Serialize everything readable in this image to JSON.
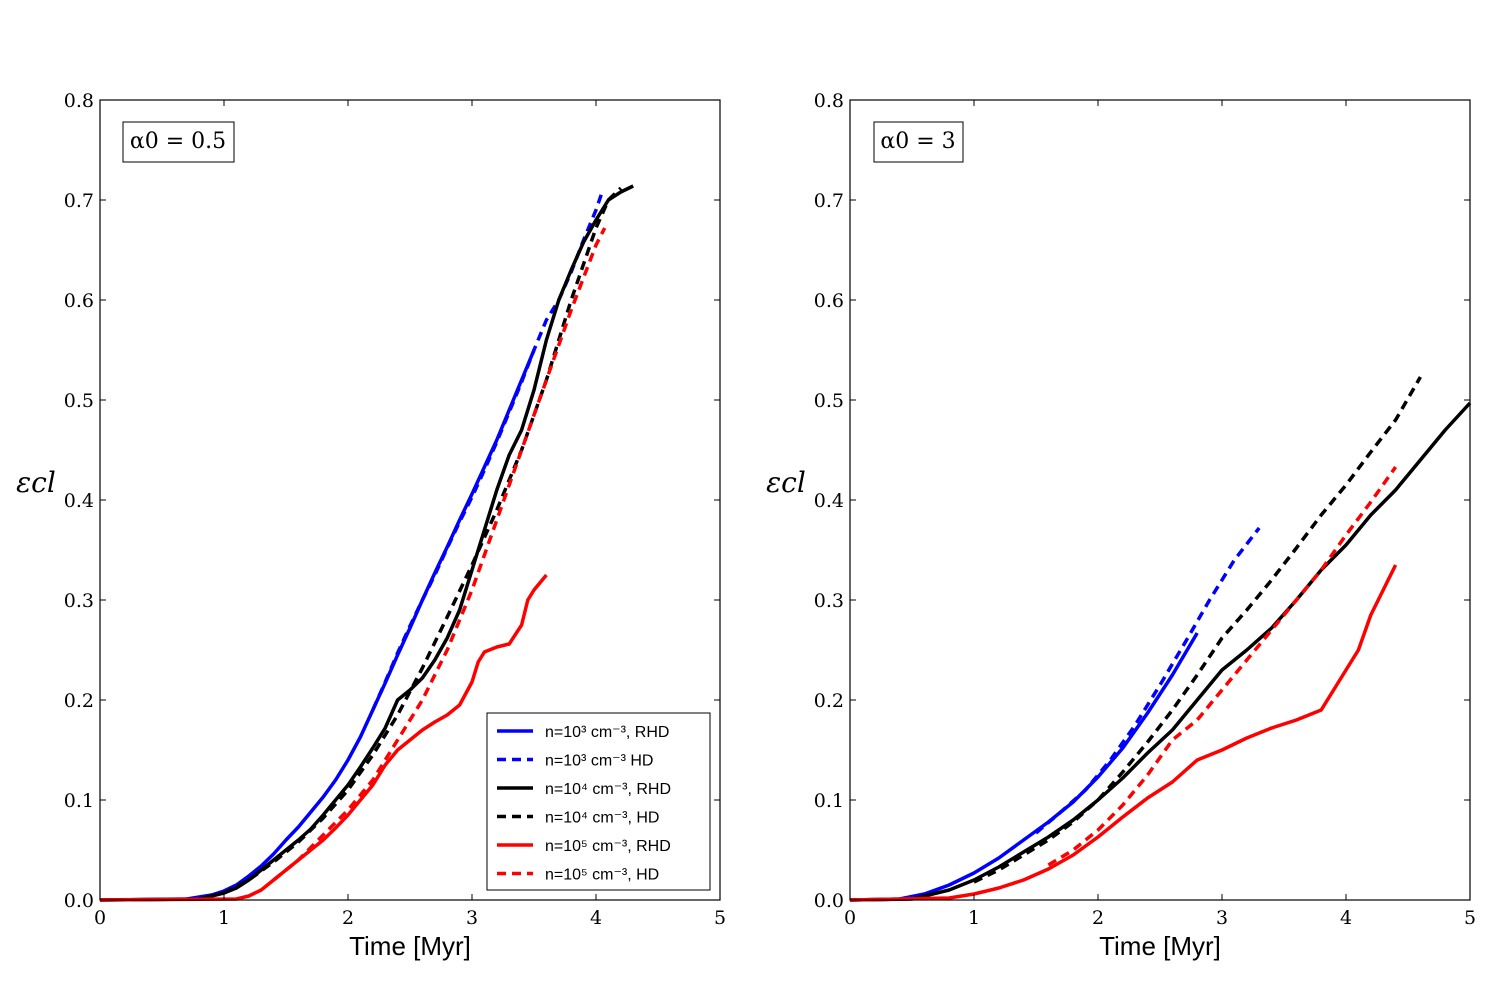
{
  "chart_data": [
    {
      "type": "line",
      "annotation": "α0 = 0.5",
      "xlabel": "Time [Myr]",
      "ylabel": "εcl",
      "xlim": [
        0,
        5
      ],
      "ylim": [
        0,
        0.8
      ],
      "xticks": [
        "0",
        "1",
        "2",
        "3",
        "4",
        "5"
      ],
      "yticks": [
        "0.0",
        "0.1",
        "0.2",
        "0.3",
        "0.4",
        "0.5",
        "0.6",
        "0.7",
        "0.8"
      ],
      "legend": {
        "placement": "bottom-right"
      },
      "series": [
        {
          "name": "n=10³ cm⁻³, RHD",
          "color": "#0000ff",
          "dash": false,
          "x": [
            0,
            0.7,
            0.9,
            1.0,
            1.1,
            1.2,
            1.3,
            1.4,
            1.5,
            1.6,
            1.7,
            1.8,
            1.9,
            2.0,
            2.1,
            2.2,
            2.3,
            2.4,
            2.5,
            2.6,
            2.7,
            2.8,
            2.9,
            3.0,
            3.1,
            3.2,
            3.3,
            3.4,
            3.5
          ],
          "y": [
            0.0,
            0.001,
            0.005,
            0.009,
            0.015,
            0.024,
            0.034,
            0.046,
            0.06,
            0.073,
            0.088,
            0.103,
            0.12,
            0.14,
            0.163,
            0.19,
            0.217,
            0.245,
            0.272,
            0.3,
            0.327,
            0.353,
            0.38,
            0.406,
            0.433,
            0.46,
            0.49,
            0.52,
            0.55
          ]
        },
        {
          "name": "n=10³ cm⁻³ HD",
          "color": "#0000ff",
          "dash": true,
          "x": [
            2.2,
            2.3,
            2.4,
            2.5,
            2.6,
            2.7,
            2.8,
            2.9,
            3.0,
            3.1,
            3.2,
            3.3,
            3.4,
            3.5,
            3.6,
            3.7,
            3.8,
            3.9,
            4.0,
            4.05
          ],
          "y": [
            0.19,
            0.218,
            0.247,
            0.274,
            0.3,
            0.325,
            0.352,
            0.378,
            0.403,
            0.43,
            0.458,
            0.488,
            0.518,
            0.55,
            0.58,
            0.6,
            0.628,
            0.66,
            0.69,
            0.708
          ]
        },
        {
          "name": "n=10⁴ cm⁻³, RHD",
          "color": "#000000",
          "dash": false,
          "x": [
            0,
            0.8,
            1.0,
            1.1,
            1.2,
            1.3,
            1.4,
            1.5,
            1.6,
            1.7,
            1.8,
            1.9,
            2.0,
            2.1,
            2.2,
            2.3,
            2.4,
            2.5,
            2.6,
            2.7,
            2.8,
            2.9,
            3.0,
            3.1,
            3.2,
            3.3,
            3.4,
            3.5,
            3.6,
            3.7,
            3.8,
            3.9,
            4.0,
            4.1,
            4.2,
            4.3
          ],
          "y": [
            0.0,
            0.001,
            0.007,
            0.012,
            0.02,
            0.03,
            0.04,
            0.05,
            0.06,
            0.071,
            0.085,
            0.1,
            0.115,
            0.133,
            0.152,
            0.172,
            0.2,
            0.21,
            0.222,
            0.24,
            0.262,
            0.29,
            0.33,
            0.37,
            0.41,
            0.445,
            0.47,
            0.51,
            0.56,
            0.6,
            0.63,
            0.658,
            0.68,
            0.7,
            0.708,
            0.714
          ]
        },
        {
          "name": "n=10⁴ cm⁻³, HD",
          "color": "#000000",
          "dash": true,
          "x": [
            1.0,
            1.2,
            1.4,
            1.6,
            1.8,
            2.0,
            2.2,
            2.4,
            2.6,
            2.8,
            3.0,
            3.2,
            3.4,
            3.6,
            3.8,
            4.0,
            4.1,
            4.2
          ],
          "y": [
            0.007,
            0.02,
            0.038,
            0.058,
            0.082,
            0.11,
            0.145,
            0.185,
            0.232,
            0.283,
            0.335,
            0.39,
            0.45,
            0.52,
            0.6,
            0.672,
            0.7,
            0.712
          ]
        },
        {
          "name": "n=10⁵ cm⁻³, RHD",
          "color": "#ff0000",
          "dash": false,
          "x": [
            0,
            1.1,
            1.2,
            1.3,
            1.4,
            1.5,
            1.6,
            1.7,
            1.8,
            1.9,
            2.0,
            2.1,
            2.2,
            2.3,
            2.4,
            2.5,
            2.6,
            2.7,
            2.8,
            2.9,
            3.0,
            3.05,
            3.1,
            3.2,
            3.3,
            3.4,
            3.45,
            3.5,
            3.6
          ],
          "y": [
            0.0,
            0.001,
            0.004,
            0.01,
            0.02,
            0.03,
            0.04,
            0.05,
            0.06,
            0.072,
            0.085,
            0.1,
            0.115,
            0.135,
            0.15,
            0.16,
            0.17,
            0.178,
            0.185,
            0.195,
            0.218,
            0.238,
            0.248,
            0.253,
            0.256,
            0.275,
            0.3,
            0.31,
            0.325
          ]
        },
        {
          "name": "n=10⁵ cm⁻³, HD",
          "color": "#ff0000",
          "dash": true,
          "x": [
            1.4,
            1.6,
            1.8,
            2.0,
            2.2,
            2.4,
            2.6,
            2.8,
            3.0,
            3.2,
            3.4,
            3.6,
            3.8,
            4.0,
            4.07
          ],
          "y": [
            0.02,
            0.04,
            0.065,
            0.09,
            0.12,
            0.16,
            0.2,
            0.25,
            0.31,
            0.38,
            0.45,
            0.52,
            0.59,
            0.655,
            0.672
          ]
        }
      ]
    },
    {
      "type": "line",
      "annotation": "α0 = 3",
      "xlabel": "Time [Myr]",
      "ylabel": "εcl",
      "xlim": [
        0,
        5
      ],
      "ylim": [
        0,
        0.8
      ],
      "xticks": [
        "0",
        "1",
        "2",
        "3",
        "4",
        "5"
      ],
      "yticks": [
        "0.0",
        "0.1",
        "0.2",
        "0.3",
        "0.4",
        "0.5",
        "0.6",
        "0.7",
        "0.8"
      ],
      "series": [
        {
          "name": "n=10³ cm⁻³, RHD",
          "color": "#0000ff",
          "dash": false,
          "x": [
            0,
            0.4,
            0.6,
            0.8,
            1.0,
            1.2,
            1.4,
            1.6,
            1.8,
            2.0,
            2.2,
            2.4,
            2.6,
            2.8
          ],
          "y": [
            0.0,
            0.001,
            0.006,
            0.015,
            0.027,
            0.042,
            0.06,
            0.078,
            0.098,
            0.123,
            0.152,
            0.187,
            0.225,
            0.267
          ]
        },
        {
          "name": "n=10³ cm⁻³ HD",
          "color": "#0000ff",
          "dash": true,
          "x": [
            1.5,
            1.7,
            1.9,
            2.1,
            2.3,
            2.5,
            2.7,
            2.9,
            3.1,
            3.3
          ],
          "y": [
            0.067,
            0.088,
            0.11,
            0.14,
            0.175,
            0.215,
            0.257,
            0.3,
            0.34,
            0.372
          ]
        },
        {
          "name": "n=10⁴ cm⁻³, RHD",
          "color": "#000000",
          "dash": false,
          "x": [
            0,
            0.5,
            0.8,
            1.0,
            1.2,
            1.4,
            1.6,
            1.8,
            2.0,
            2.2,
            2.4,
            2.6,
            2.8,
            3.0,
            3.2,
            3.4,
            3.6,
            3.8,
            4.0,
            4.2,
            4.4,
            4.6,
            4.8,
            5.0
          ],
          "y": [
            0.0,
            0.001,
            0.01,
            0.02,
            0.033,
            0.048,
            0.063,
            0.08,
            0.1,
            0.122,
            0.147,
            0.17,
            0.2,
            0.23,
            0.25,
            0.272,
            0.3,
            0.33,
            0.355,
            0.385,
            0.41,
            0.44,
            0.47,
            0.497
          ]
        },
        {
          "name": "n=10⁴ cm⁻³, HD",
          "color": "#000000",
          "dash": true,
          "x": [
            1.0,
            1.2,
            1.4,
            1.6,
            1.8,
            2.0,
            2.2,
            2.4,
            2.6,
            2.8,
            3.0,
            3.2,
            3.4,
            3.6,
            3.8,
            4.0,
            4.2,
            4.4,
            4.6
          ],
          "y": [
            0.018,
            0.03,
            0.045,
            0.06,
            0.078,
            0.1,
            0.128,
            0.158,
            0.19,
            0.225,
            0.262,
            0.29,
            0.32,
            0.352,
            0.385,
            0.415,
            0.448,
            0.48,
            0.523
          ]
        },
        {
          "name": "n=10⁵ cm⁻³, RHD",
          "color": "#ff0000",
          "dash": false,
          "x": [
            0,
            0.8,
            1.0,
            1.2,
            1.4,
            1.6,
            1.8,
            2.0,
            2.2,
            2.4,
            2.6,
            2.8,
            3.0,
            3.2,
            3.4,
            3.6,
            3.8,
            3.9,
            4.0,
            4.1,
            4.2,
            4.3,
            4.4
          ],
          "y": [
            0.0,
            0.002,
            0.006,
            0.012,
            0.02,
            0.031,
            0.045,
            0.063,
            0.083,
            0.102,
            0.118,
            0.14,
            0.15,
            0.162,
            0.172,
            0.18,
            0.19,
            0.21,
            0.23,
            0.25,
            0.285,
            0.31,
            0.335
          ]
        },
        {
          "name": "n=10⁵ cm⁻³, HD",
          "color": "#ff0000",
          "dash": true,
          "x": [
            1.6,
            1.8,
            2.0,
            2.2,
            2.4,
            2.6,
            2.8,
            3.0,
            3.2,
            3.4,
            3.6,
            3.8,
            4.0,
            4.2,
            4.4
          ],
          "y": [
            0.035,
            0.05,
            0.07,
            0.095,
            0.125,
            0.16,
            0.18,
            0.21,
            0.24,
            0.27,
            0.3,
            0.33,
            0.365,
            0.398,
            0.433
          ]
        }
      ]
    }
  ]
}
